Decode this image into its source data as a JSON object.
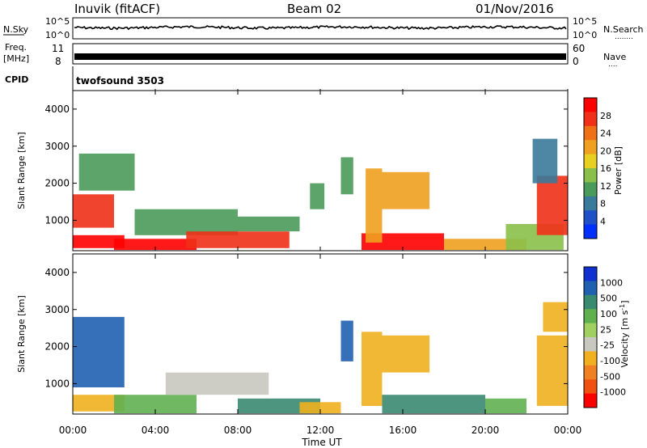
{
  "header": {
    "station": "Inuvik (fitACF)",
    "beam": "Beam 02",
    "date": "01/Nov/2016"
  },
  "colors": {
    "power_scale": [
      "#0030ff",
      "#2050c8",
      "#3a7a9a",
      "#4a9a5a",
      "#8ac04a",
      "#e8d020",
      "#f0a020",
      "#f07018",
      "#f03018",
      "#ff0000"
    ],
    "velocity_scale": [
      "#1030d0",
      "#2060b0",
      "#3a8a70",
      "#60b050",
      "#a0d060",
      "#c8c8c0",
      "#f0b020",
      "#f08020",
      "#f05010",
      "#ff0000"
    ]
  },
  "panels": {
    "nsky": {
      "label": "N.Sky",
      "ticks_left": [
        "10^5",
        "10^0"
      ],
      "ticks_right": [
        "10^5",
        "10^0"
      ],
      "right_label": "N.Search",
      "right_dots": "........"
    },
    "freq": {
      "label_line1": "Freq.",
      "label_line2": "[MHz]",
      "ticks_left": [
        "11",
        "8"
      ],
      "ticks_right": [
        "60",
        "0"
      ],
      "right_label": "Nave",
      "right_dots": "...."
    },
    "cpid": {
      "label": "CPID",
      "text": "twofsound 3503"
    },
    "power": {
      "ylabel": "Slant Range [km]",
      "yticks": [
        "4000",
        "3000",
        "2000",
        "1000"
      ],
      "colorbar_label": "Power [dB]",
      "colorbar_ticks": [
        "28",
        "24",
        "20",
        "16",
        "12",
        "8",
        "4"
      ]
    },
    "velocity": {
      "ylabel": "Slant Range [km]",
      "yticks": [
        "4000",
        "3000",
        "2000",
        "1000"
      ],
      "colorbar_label": "Velocity [m s",
      "colorbar_label_sup": "-1",
      "colorbar_label_end": "]",
      "colorbar_ticks": [
        "1000",
        "500",
        "100",
        "25",
        "-25",
        "-100",
        "-500",
        "-1000"
      ]
    }
  },
  "xaxis": {
    "ticks": [
      "00:00",
      "04:00",
      "08:00",
      "12:00",
      "16:00",
      "20:00",
      "00:00"
    ],
    "label": "Time UT"
  },
  "chart_data": [
    {
      "type": "heatmap",
      "title": "Power",
      "xlabel": "Time UT",
      "ylabel": "Slant Range [km]",
      "x_range_hours": [
        0,
        24
      ],
      "y_range_km": [
        180,
        4500
      ],
      "colorbar_range_db": [
        0,
        32
      ],
      "regions": [
        {
          "t0": 0.0,
          "t1": 2.5,
          "r0": 250,
          "r1": 600,
          "value": 30
        },
        {
          "t0": 0.0,
          "t1": 2.0,
          "r0": 800,
          "r1": 1700,
          "value": 26
        },
        {
          "t0": 0.3,
          "t1": 3.0,
          "r0": 1800,
          "r1": 2800,
          "value": 10
        },
        {
          "t0": 2.0,
          "t1": 6.0,
          "r0": 200,
          "r1": 500,
          "value": 30
        },
        {
          "t0": 3.0,
          "t1": 8.0,
          "r0": 600,
          "r1": 1300,
          "value": 12
        },
        {
          "t0": 5.5,
          "t1": 10.5,
          "r0": 250,
          "r1": 700,
          "value": 28
        },
        {
          "t0": 8.0,
          "t1": 11.0,
          "r0": 700,
          "r1": 1100,
          "value": 12
        },
        {
          "t0": 11.5,
          "t1": 12.2,
          "r0": 1300,
          "r1": 2000,
          "value": 10
        },
        {
          "t0": 13.0,
          "t1": 13.6,
          "r0": 1700,
          "r1": 2700,
          "value": 10
        },
        {
          "t0": 14.0,
          "t1": 18.0,
          "r0": 200,
          "r1": 650,
          "value": 30
        },
        {
          "t0": 14.2,
          "t1": 15.0,
          "r0": 400,
          "r1": 2400,
          "value": 22
        },
        {
          "t0": 15.0,
          "t1": 17.3,
          "r0": 1300,
          "r1": 2300,
          "value": 20
        },
        {
          "t0": 18.0,
          "t1": 22.0,
          "r0": 200,
          "r1": 500,
          "value": 20
        },
        {
          "t0": 21.0,
          "t1": 23.8,
          "r0": 200,
          "r1": 900,
          "value": 14
        },
        {
          "t0": 22.5,
          "t1": 24.0,
          "r0": 600,
          "r1": 2200,
          "value": 28
        },
        {
          "t0": 22.3,
          "t1": 23.5,
          "r0": 2000,
          "r1": 3200,
          "value": 8
        }
      ]
    },
    {
      "type": "heatmap",
      "title": "Velocity",
      "xlabel": "Time UT",
      "ylabel": "Slant Range [km]",
      "x_range_hours": [
        0,
        24
      ],
      "y_range_km": [
        180,
        4500
      ],
      "colorbar_ticks": [
        1000,
        500,
        100,
        25,
        -25,
        -100,
        -500,
        -1000
      ],
      "regions": [
        {
          "t0": 0.0,
          "t1": 2.5,
          "r0": 250,
          "r1": 700,
          "value": -100
        },
        {
          "t0": 0.0,
          "t1": 2.5,
          "r0": 900,
          "r1": 2800,
          "value": 500
        },
        {
          "t0": 2.0,
          "t1": 6.0,
          "r0": 200,
          "r1": 700,
          "value": 50
        },
        {
          "t0": 4.5,
          "t1": 9.5,
          "r0": 700,
          "r1": 1300,
          "value": 0
        },
        {
          "t0": 8.0,
          "t1": 12.0,
          "r0": 200,
          "r1": 600,
          "value": 100
        },
        {
          "t0": 11.0,
          "t1": 13.0,
          "r0": 200,
          "r1": 500,
          "value": -100
        },
        {
          "t0": 13.0,
          "t1": 13.6,
          "r0": 1600,
          "r1": 2700,
          "value": 500
        },
        {
          "t0": 14.0,
          "t1": 15.0,
          "r0": 400,
          "r1": 2400,
          "value": -100
        },
        {
          "t0": 15.0,
          "t1": 17.3,
          "r0": 1300,
          "r1": 2300,
          "value": -100
        },
        {
          "t0": 15.0,
          "t1": 20.0,
          "r0": 200,
          "r1": 700,
          "value": 100
        },
        {
          "t0": 20.0,
          "t1": 22.0,
          "r0": 200,
          "r1": 600,
          "value": 50
        },
        {
          "t0": 22.5,
          "t1": 24.0,
          "r0": 400,
          "r1": 2300,
          "value": -100
        },
        {
          "t0": 22.8,
          "t1": 24.0,
          "r0": 2400,
          "r1": 3200,
          "value": -100
        }
      ]
    }
  ]
}
